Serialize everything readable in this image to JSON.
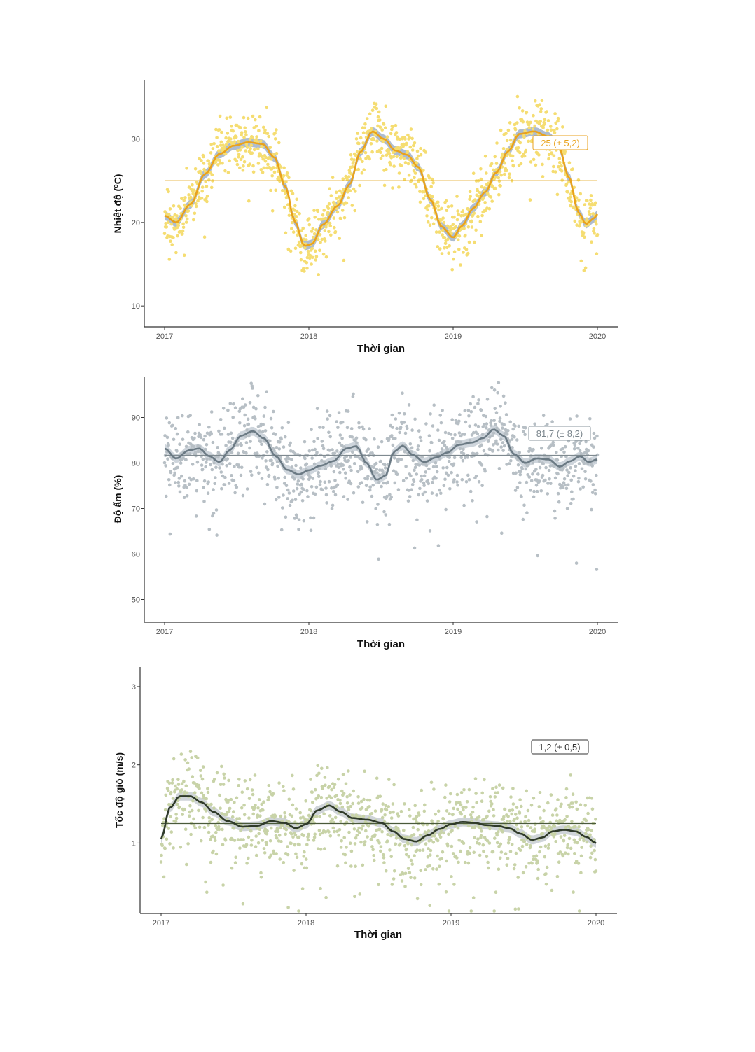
{
  "chart_data": [
    {
      "type": "scatter",
      "xlabel": "Thời gian",
      "ylabel_main": "Nhiệt độ (",
      "ylabel_sup": "o",
      "ylabel_tail": "C)",
      "x_ticks": [
        "2017",
        "2018",
        "2019",
        "2020"
      ],
      "xlim": [
        2017,
        2020
      ],
      "y_ticks": [
        10,
        20,
        30
      ],
      "ylim": [
        7.5,
        37
      ],
      "mean_line": 25,
      "annotation": "25 (± 5,2)",
      "point_color": "#f5dd72",
      "smooth_color": "#e9a21c",
      "smooth_band_color": "#9fb0c8",
      "mean_line_color": "#e0a41a",
      "smooth": [
        [
          2017.0,
          20.8
        ],
        [
          2017.08,
          20.0
        ],
        [
          2017.18,
          22.2
        ],
        [
          2017.28,
          25.8
        ],
        [
          2017.38,
          28.2
        ],
        [
          2017.48,
          29.2
        ],
        [
          2017.58,
          29.6
        ],
        [
          2017.68,
          29.4
        ],
        [
          2017.76,
          27.8
        ],
        [
          2017.84,
          24.2
        ],
        [
          2017.9,
          20.2
        ],
        [
          2017.97,
          17.2
        ],
        [
          2018.02,
          17.4
        ],
        [
          2018.1,
          19.8
        ],
        [
          2018.2,
          22.0
        ],
        [
          2018.28,
          24.5
        ],
        [
          2018.36,
          28.5
        ],
        [
          2018.44,
          30.9
        ],
        [
          2018.52,
          30.0
        ],
        [
          2018.6,
          28.6
        ],
        [
          2018.68,
          28.1
        ],
        [
          2018.76,
          26.6
        ],
        [
          2018.84,
          22.8
        ],
        [
          2018.92,
          19.5
        ],
        [
          2019.0,
          18.2
        ],
        [
          2019.06,
          19.6
        ],
        [
          2019.14,
          21.7
        ],
        [
          2019.22,
          23.6
        ],
        [
          2019.3,
          26.0
        ],
        [
          2019.38,
          28.5
        ],
        [
          2019.46,
          30.6
        ],
        [
          2019.56,
          30.9
        ],
        [
          2019.66,
          30.3
        ],
        [
          2019.73,
          29.2
        ],
        [
          2019.8,
          25.5
        ],
        [
          2019.87,
          21.2
        ],
        [
          2019.92,
          19.8
        ],
        [
          2019.97,
          20.4
        ],
        [
          2020.0,
          21.0
        ]
      ],
      "scatter_seed": 11,
      "scatter_noise": 2.6
    },
    {
      "type": "scatter",
      "xlabel": "Thời gian",
      "ylabel_main": "Độ ẩm (%)",
      "ylabel_sup": "",
      "ylabel_tail": "",
      "x_ticks": [
        "2017",
        "2018",
        "2019",
        "2020"
      ],
      "xlim": [
        2017,
        2020
      ],
      "y_ticks": [
        50,
        60,
        70,
        80,
        90
      ],
      "ylim": [
        45,
        99
      ],
      "mean_line": 81.7,
      "annotation": "81,7 (± 8,2)",
      "point_color": "#b7bfc5",
      "smooth_color": "#6b7a84",
      "smooth_band_color": "#c6ced6",
      "mean_line_color": "#7f8a90",
      "smooth": [
        [
          2017.0,
          83.2
        ],
        [
          2017.08,
          81.0
        ],
        [
          2017.17,
          82.8
        ],
        [
          2017.24,
          83.2
        ],
        [
          2017.31,
          81.5
        ],
        [
          2017.38,
          80.2
        ],
        [
          2017.45,
          82.8
        ],
        [
          2017.53,
          86.0
        ],
        [
          2017.61,
          87.0
        ],
        [
          2017.69,
          85.4
        ],
        [
          2017.77,
          81.5
        ],
        [
          2017.85,
          78.5
        ],
        [
          2017.93,
          77.5
        ],
        [
          2018.0,
          78.4
        ],
        [
          2018.08,
          79.4
        ],
        [
          2018.17,
          80.4
        ],
        [
          2018.26,
          83.2
        ],
        [
          2018.33,
          83.7
        ],
        [
          2018.4,
          80.0
        ],
        [
          2018.47,
          76.3
        ],
        [
          2018.53,
          77.2
        ],
        [
          2018.59,
          82.5
        ],
        [
          2018.65,
          83.8
        ],
        [
          2018.72,
          81.8
        ],
        [
          2018.8,
          80.2
        ],
        [
          2018.88,
          81.2
        ],
        [
          2018.96,
          82.3
        ],
        [
          2019.04,
          84.0
        ],
        [
          2019.13,
          84.5
        ],
        [
          2019.21,
          85.5
        ],
        [
          2019.28,
          87.4
        ],
        [
          2019.35,
          86.0
        ],
        [
          2019.42,
          82.0
        ],
        [
          2019.5,
          80.0
        ],
        [
          2019.58,
          81.0
        ],
        [
          2019.66,
          80.8
        ],
        [
          2019.74,
          79.2
        ],
        [
          2019.81,
          80.4
        ],
        [
          2019.88,
          81.5
        ],
        [
          2019.94,
          80.2
        ],
        [
          2020.0,
          80.8
        ]
      ],
      "scatter_seed": 23,
      "scatter_noise": 7.5
    },
    {
      "type": "scatter",
      "xlabel": "Thời gian",
      "ylabel_main": "Tốc độ gió (m/s)",
      "ylabel_sup": "",
      "ylabel_tail": "",
      "x_ticks": [
        "2017",
        "2018",
        "2019",
        "2020"
      ],
      "xlim": [
        2017,
        2020
      ],
      "y_ticks": [
        1,
        2,
        3
      ],
      "ylim": [
        0.1,
        3.25
      ],
      "mean_line": 1.25,
      "annotation": "1,2 (± 0,5)",
      "point_color": "#c8d3a8",
      "smooth_color": "#2f3a2a",
      "smooth_band_color": "#c7ccd1",
      "mean_line_color": "#4a5a3a",
      "smooth": [
        [
          2017.0,
          1.05
        ],
        [
          2017.06,
          1.45
        ],
        [
          2017.13,
          1.6
        ],
        [
          2017.2,
          1.6
        ],
        [
          2017.28,
          1.52
        ],
        [
          2017.36,
          1.4
        ],
        [
          2017.46,
          1.28
        ],
        [
          2017.56,
          1.21
        ],
        [
          2017.66,
          1.22
        ],
        [
          2017.76,
          1.28
        ],
        [
          2017.85,
          1.26
        ],
        [
          2017.93,
          1.19
        ],
        [
          2018.0,
          1.24
        ],
        [
          2018.08,
          1.42
        ],
        [
          2018.16,
          1.48
        ],
        [
          2018.24,
          1.4
        ],
        [
          2018.32,
          1.32
        ],
        [
          2018.42,
          1.3
        ],
        [
          2018.52,
          1.26
        ],
        [
          2018.6,
          1.15
        ],
        [
          2018.68,
          1.05
        ],
        [
          2018.76,
          1.02
        ],
        [
          2018.84,
          1.1
        ],
        [
          2018.92,
          1.18
        ],
        [
          2019.0,
          1.24
        ],
        [
          2019.08,
          1.27
        ],
        [
          2019.16,
          1.26
        ],
        [
          2019.24,
          1.23
        ],
        [
          2019.32,
          1.22
        ],
        [
          2019.4,
          1.19
        ],
        [
          2019.48,
          1.12
        ],
        [
          2019.56,
          1.04
        ],
        [
          2019.63,
          1.07
        ],
        [
          2019.7,
          1.15
        ],
        [
          2019.78,
          1.17
        ],
        [
          2019.86,
          1.15
        ],
        [
          2019.93,
          1.08
        ],
        [
          2020.0,
          1.0
        ]
      ],
      "scatter_seed": 37,
      "scatter_noise": 0.42
    }
  ]
}
